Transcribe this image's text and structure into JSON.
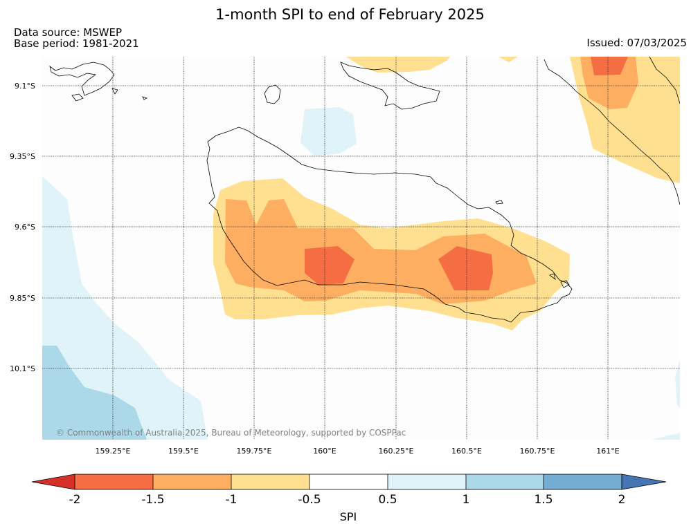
{
  "title": "1-month SPI to end of February 2025",
  "data_source": "Data source: MSWEP",
  "base_period": "Base period: 1981-2021",
  "issued": "Issued: 07/03/2025",
  "copyright": "© Commonwealth of Australia 2025, Bureau of Meteorology, supported by COSPPac",
  "lat_ticks": [
    "9.1°S",
    "9.35°S",
    "9.6°S",
    "9.85°S",
    "10.1°S"
  ],
  "lon_ticks": [
    "159.25°E",
    "159.5°E",
    "159.75°E",
    "160°E",
    "160.25°E",
    "160.5°E",
    "160.75°E",
    "161°E"
  ],
  "colorbar": {
    "label": "SPI",
    "ticks": [
      "-2",
      "-1.5",
      "-1",
      "-0.5",
      "0.5",
      "1",
      "1.5",
      "2"
    ],
    "colors": {
      "below_-2": "#d73027",
      "-2_to_-1.5": "#f46d43",
      "-1.5_to_-1": "#fdae61",
      "-1_to_-0.5": "#fee090",
      "-0.5_to_0.5": "#ffffff",
      "0.5_to_1": "#e0f3f8",
      "1_to_1.5": "#abd9e9",
      "1.5_to_2": "#74add1",
      "above_2": "#4575b4"
    }
  }
}
